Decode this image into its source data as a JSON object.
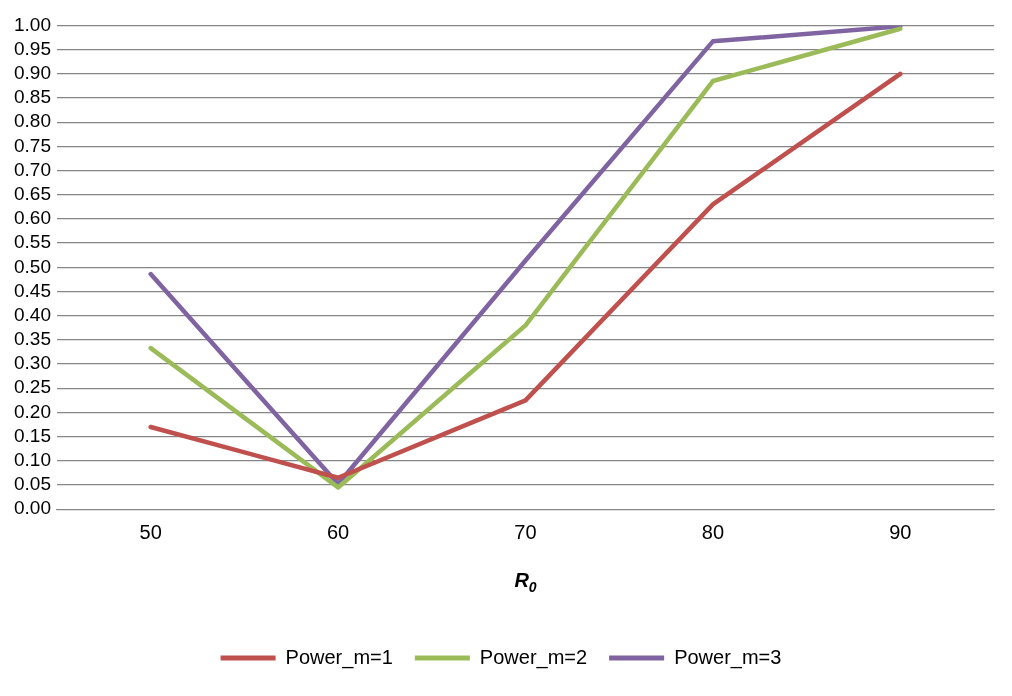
{
  "chart_data": {
    "type": "line",
    "xlabel": "R$_{0}$",
    "categories": [
      "50",
      "60",
      "70",
      "80",
      "90"
    ],
    "series": [
      {
        "name": "Power_m=1",
        "color": "#c0504d",
        "values": [
          0.17,
          0.065,
          0.225,
          0.63,
          0.9
        ]
      },
      {
        "name": "Power_m=2",
        "color": "#9bbb59",
        "values": [
          0.333,
          0.045,
          0.38,
          0.885,
          0.993
        ]
      },
      {
        "name": "Power_m=3",
        "color": "#8064a2",
        "values": [
          0.486,
          0.052,
          0.514,
          0.967,
          0.998
        ]
      }
    ],
    "ylim": [
      0,
      1
    ],
    "yticks": [
      {
        "value": 0,
        "label": "0.00"
      },
      {
        "value": 0.05,
        "label": "0.05"
      },
      {
        "value": 0.1,
        "label": "0.10"
      },
      {
        "value": 0.15,
        "label": "0.15"
      },
      {
        "value": 0.2,
        "label": "0.20"
      },
      {
        "value": 0.25,
        "label": "0.25"
      },
      {
        "value": 0.3,
        "label": "0.30"
      },
      {
        "value": 0.35,
        "label": "0.35"
      },
      {
        "value": 0.4,
        "label": "0.40"
      },
      {
        "value": 0.45,
        "label": "0.45"
      },
      {
        "value": 0.5,
        "label": "0.50"
      },
      {
        "value": 0.55,
        "label": "0.55"
      },
      {
        "value": 0.6,
        "label": "0.60"
      },
      {
        "value": 0.65,
        "label": "0.65"
      },
      {
        "value": 0.7,
        "label": "0.70"
      },
      {
        "value": 0.75,
        "label": "0.75"
      },
      {
        "value": 0.8,
        "label": "0.80"
      },
      {
        "value": 0.85,
        "label": "0.85"
      },
      {
        "value": 0.9,
        "label": "0.90"
      },
      {
        "value": 0.95,
        "label": "0.95"
      },
      {
        "value": 1,
        "label": "1.00"
      }
    ],
    "grid": "y",
    "legend": "bottom",
    "marker": "none",
    "line_style": "solid"
  }
}
